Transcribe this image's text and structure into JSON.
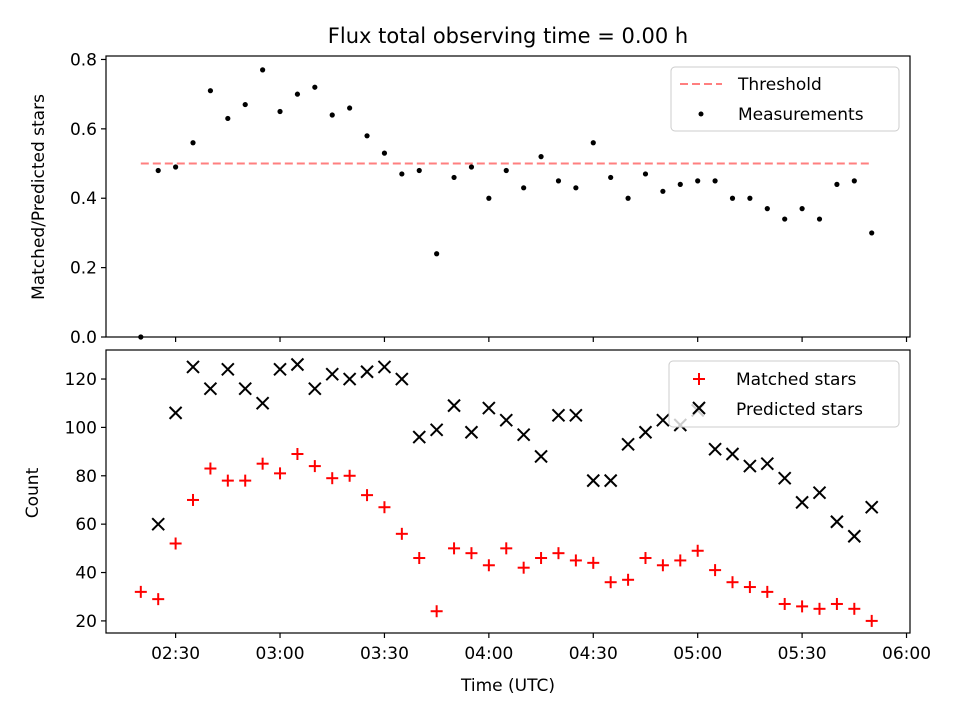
{
  "chart_data": {
    "title": "Flux total observing time = 0.00 h",
    "shared_x": {
      "label": "Time (UTC)",
      "unit": "minutes after 00:00 UTC",
      "range": [
        "02:10",
        "06:01"
      ],
      "ticks": [
        "02:30",
        "03:00",
        "03:30",
        "04:00",
        "04:30",
        "05:00",
        "05:30",
        "06:00"
      ]
    },
    "panels": [
      {
        "type": "scatter",
        "ylabel": "Matched/Predicted stars",
        "ylim": [
          0,
          0.81
        ],
        "yticks": [
          "0.0",
          "0.2",
          "0.4",
          "0.6",
          "0.8"
        ],
        "legend": {
          "placement": "top-right",
          "entries": [
            "Threshold",
            "Measurements"
          ]
        },
        "threshold": {
          "name": "Threshold",
          "y": 0.5,
          "x_start": "02:20",
          "x_end": "05:50",
          "color": "#ff7f7f",
          "style": "dashed"
        },
        "series": [
          {
            "name": "Measurements",
            "color": "#000000",
            "marker": "dot",
            "x": [
              "02:20",
              "02:25",
              "02:30",
              "02:35",
              "02:40",
              "02:45",
              "02:50",
              "02:55",
              "03:00",
              "03:05",
              "03:10",
              "03:15",
              "03:20",
              "03:25",
              "03:30",
              "03:35",
              "03:40",
              "03:45",
              "03:50",
              "03:55",
              "04:00",
              "04:05",
              "04:10",
              "04:15",
              "04:20",
              "04:25",
              "04:30",
              "04:35",
              "04:40",
              "04:45",
              "04:50",
              "04:55",
              "05:00",
              "05:05",
              "05:10",
              "05:15",
              "05:20",
              "05:25",
              "05:30",
              "05:35",
              "05:40",
              "05:45",
              "05:50"
            ],
            "y": [
              0.0,
              0.48,
              0.49,
              0.56,
              0.71,
              0.63,
              0.67,
              0.77,
              0.65,
              0.7,
              0.72,
              0.64,
              0.66,
              0.58,
              0.53,
              0.47,
              0.48,
              0.24,
              0.46,
              0.49,
              0.4,
              0.48,
              0.43,
              0.52,
              0.45,
              0.43,
              0.56,
              0.46,
              0.4,
              0.47,
              0.42,
              0.44,
              0.45,
              0.45,
              0.4,
              0.4,
              0.37,
              0.34,
              0.37,
              0.34,
              0.44,
              0.45,
              0.3
            ]
          }
        ]
      },
      {
        "type": "scatter",
        "ylabel": "Count",
        "ylim": [
          15,
          132
        ],
        "yticks": [
          "20",
          "40",
          "60",
          "80",
          "100",
          "120"
        ],
        "legend": {
          "placement": "top-right",
          "entries": [
            "Matched stars",
            "Predicted stars"
          ]
        },
        "series": [
          {
            "name": "Matched stars",
            "color": "#ff0000",
            "marker": "plus",
            "x": [
              "02:20",
              "02:25",
              "02:30",
              "02:35",
              "02:40",
              "02:45",
              "02:50",
              "02:55",
              "03:00",
              "03:05",
              "03:10",
              "03:15",
              "03:20",
              "03:25",
              "03:30",
              "03:35",
              "03:40",
              "03:45",
              "03:50",
              "03:55",
              "04:00",
              "04:05",
              "04:10",
              "04:15",
              "04:20",
              "04:25",
              "04:30",
              "04:35",
              "04:40",
              "04:45",
              "04:50",
              "04:55",
              "05:00",
              "05:05",
              "05:10",
              "05:15",
              "05:20",
              "05:25",
              "05:30",
              "05:35",
              "05:40",
              "05:45",
              "05:50"
            ],
            "y": [
              32,
              29,
              52,
              70,
              83,
              78,
              78,
              85,
              81,
              89,
              84,
              79,
              80,
              72,
              67,
              56,
              46,
              24,
              50,
              48,
              43,
              50,
              42,
              46,
              48,
              45,
              44,
              36,
              37,
              46,
              43,
              45,
              49,
              41,
              36,
              34,
              32,
              27,
              26,
              25,
              27,
              25,
              20
            ]
          },
          {
            "name": "Predicted stars",
            "color": "#000000",
            "marker": "x",
            "x": [
              "02:25",
              "02:30",
              "02:35",
              "02:40",
              "02:45",
              "02:50",
              "02:55",
              "03:00",
              "03:05",
              "03:10",
              "03:15",
              "03:20",
              "03:25",
              "03:30",
              "03:35",
              "03:40",
              "03:45",
              "03:50",
              "03:55",
              "04:00",
              "04:05",
              "04:10",
              "04:15",
              "04:20",
              "04:25",
              "04:30",
              "04:35",
              "04:40",
              "04:45",
              "04:50",
              "04:55",
              "05:00",
              "05:05",
              "05:10",
              "05:15",
              "05:20",
              "05:25",
              "05:30",
              "05:35",
              "05:40",
              "05:45",
              "05:50"
            ],
            "y": [
              60,
              106,
              125,
              116,
              124,
              116,
              110,
              124,
              126,
              116,
              122,
              120,
              123,
              125,
              120,
              96,
              99,
              109,
              98,
              108,
              103,
              97,
              88,
              105,
              105,
              78,
              78,
              93,
              98,
              103,
              101,
              107,
              91,
              89,
              84,
              85,
              79,
              69,
              73,
              61,
              55,
              67
            ]
          }
        ]
      }
    ]
  }
}
